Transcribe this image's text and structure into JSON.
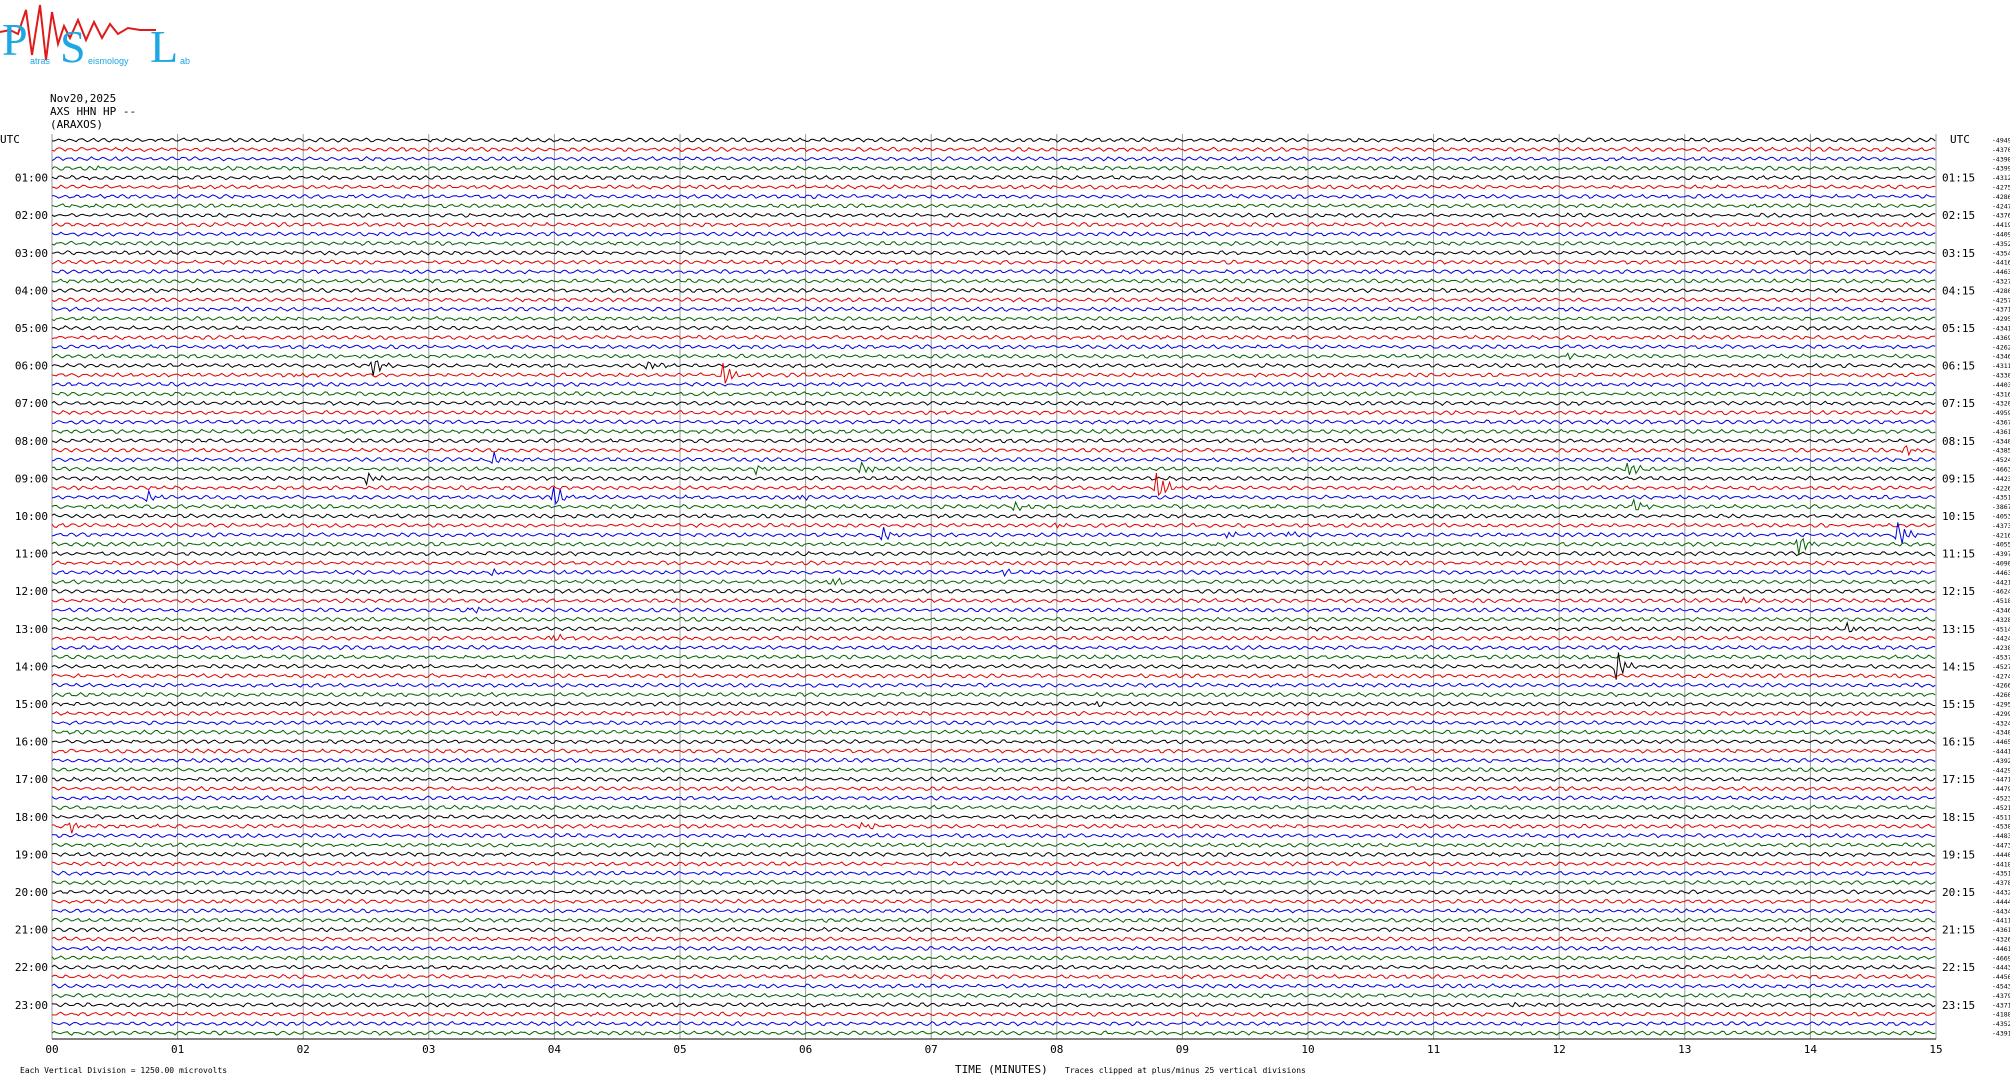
{
  "logo": {
    "letters": [
      "P",
      "S",
      "L"
    ],
    "small_words": [
      "atras",
      "eismology",
      "ab"
    ],
    "colors": {
      "letters": "#1ea7e0",
      "trace": "#e01a1a"
    }
  },
  "header": {
    "date": "Nov20,2025",
    "station": "AXS HHN HP --",
    "name": "(ARAXOS)"
  },
  "chart_data": {
    "type": "line",
    "title": "",
    "xlabel": "TIME (MINUTES)",
    "ylabel": "UTC",
    "ylabel_right": "UTC",
    "x_ticks": [
      "00",
      "01",
      "02",
      "03",
      "04",
      "05",
      "06",
      "07",
      "08",
      "09",
      "10",
      "11",
      "12",
      "13",
      "14",
      "15"
    ],
    "xlim": [
      0,
      15
    ],
    "left_hour_labels": [
      "01:00",
      "02:00",
      "03:00",
      "04:00",
      "05:00",
      "06:00",
      "07:00",
      "08:00",
      "09:00",
      "10:00",
      "11:00",
      "12:00",
      "13:00",
      "14:00",
      "15:00",
      "16:00",
      "17:00",
      "18:00",
      "19:00",
      "20:00",
      "21:00",
      "22:00",
      "23:00"
    ],
    "right_hour_labels": [
      "01:15",
      "02:15",
      "03:15",
      "04:15",
      "05:15",
      "06:15",
      "07:15",
      "08:15",
      "09:15",
      "10:15",
      "11:15",
      "12:15",
      "13:15",
      "14:15",
      "15:15",
      "16:15",
      "17:15",
      "18:15",
      "19:15",
      "20:15",
      "21:15",
      "22:15",
      "23:15"
    ],
    "trace_colors": [
      "#000000",
      "#e00000",
      "#0000e0",
      "#006400"
    ],
    "trace_offsets": [
      "4949",
      "4370",
      "4398",
      "4399",
      "4312",
      "4275",
      "4286",
      "4247",
      "4376",
      "4419",
      "4409",
      "4352",
      "4354",
      "4416",
      "4463",
      "4327",
      "4280",
      "4257",
      "4371",
      "4295",
      "4341",
      "4369",
      "4262",
      "4346",
      "4311",
      "4330",
      "4403",
      "4316",
      "4320",
      "4959",
      "4367",
      "4361",
      "4340",
      "4385",
      "4524",
      "4663",
      "4423",
      "4226",
      "4351",
      "3867",
      "4053",
      "4373",
      "4216",
      "4055",
      "4397",
      "4090",
      "4463",
      "4421",
      "4624",
      "4518",
      "4346",
      "4328",
      "4514",
      "4424",
      "4238",
      "4537",
      "4527",
      "4274",
      "4266",
      "4260",
      "4295",
      "4299",
      "4324",
      "4340",
      "4465",
      "4441",
      "4392",
      "4429",
      "4471",
      "4479",
      "4523",
      "4521",
      "4511",
      "4538",
      "4483",
      "4473",
      "4440",
      "4418",
      "4351",
      "4378",
      "4432",
      "4444",
      "4434",
      "4411",
      "4361",
      "4326",
      "4461",
      "4669",
      "4443",
      "4456",
      "4543",
      "4379",
      "4371",
      "4188",
      "4352",
      "4391"
    ],
    "events": [
      {
        "trace": 3,
        "minute": 0.35,
        "amp": 3
      },
      {
        "trace": 23,
        "minute": 12.05,
        "amp": 4
      },
      {
        "trace": 24,
        "minute": 2.55,
        "amp": 12
      },
      {
        "trace": 24,
        "minute": 4.75,
        "amp": 6
      },
      {
        "trace": 25,
        "minute": 5.35,
        "amp": 14
      },
      {
        "trace": 25,
        "minute": 1.95,
        "amp": 3
      },
      {
        "trace": 33,
        "minute": 14.75,
        "amp": 6
      },
      {
        "trace": 34,
        "minute": 3.5,
        "amp": 8
      },
      {
        "trace": 35,
        "minute": 6.45,
        "amp": 8
      },
      {
        "trace": 35,
        "minute": 12.55,
        "amp": 10
      },
      {
        "trace": 35,
        "minute": 5.6,
        "amp": 5
      },
      {
        "trace": 36,
        "minute": 2.5,
        "amp": 7
      },
      {
        "trace": 37,
        "minute": 8.8,
        "amp": 18
      },
      {
        "trace": 38,
        "minute": 4.0,
        "amp": 14
      },
      {
        "trace": 38,
        "minute": 0.75,
        "amp": 6
      },
      {
        "trace": 38,
        "minute": 5.95,
        "amp": 3
      },
      {
        "trace": 39,
        "minute": 7.65,
        "amp": 6
      },
      {
        "trace": 39,
        "minute": 12.6,
        "amp": 7
      },
      {
        "trace": 41,
        "minute": 8.0,
        "amp": 3
      },
      {
        "trace": 42,
        "minute": 6.6,
        "amp": 9
      },
      {
        "trace": 42,
        "minute": 9.35,
        "amp": 4
      },
      {
        "trace": 42,
        "minute": 9.85,
        "amp": 4
      },
      {
        "trace": 42,
        "minute": 14.7,
        "amp": 16
      },
      {
        "trace": 43,
        "minute": 13.9,
        "amp": 12
      },
      {
        "trace": 46,
        "minute": 3.5,
        "amp": 4
      },
      {
        "trace": 46,
        "minute": 7.55,
        "amp": 5
      },
      {
        "trace": 47,
        "minute": 6.2,
        "amp": 6
      },
      {
        "trace": 49,
        "minute": 13.45,
        "amp": 5
      },
      {
        "trace": 50,
        "minute": 3.35,
        "amp": 4
      },
      {
        "trace": 52,
        "minute": 14.3,
        "amp": 7
      },
      {
        "trace": 53,
        "minute": 4.0,
        "amp": 5
      },
      {
        "trace": 56,
        "minute": 12.45,
        "amp": 18
      },
      {
        "trace": 60,
        "minute": 8.3,
        "amp": 3
      },
      {
        "trace": 73,
        "minute": 0.15,
        "amp": 7
      },
      {
        "trace": 73,
        "minute": 6.45,
        "amp": 5
      },
      {
        "trace": 92,
        "minute": 11.6,
        "amp": 3
      }
    ],
    "grid": true
  },
  "footer": {
    "left_note": "Each Vertical Division = 1250.00 microvolts",
    "right_note": "Traces clipped at plus/minus 25 vertical divisions"
  }
}
